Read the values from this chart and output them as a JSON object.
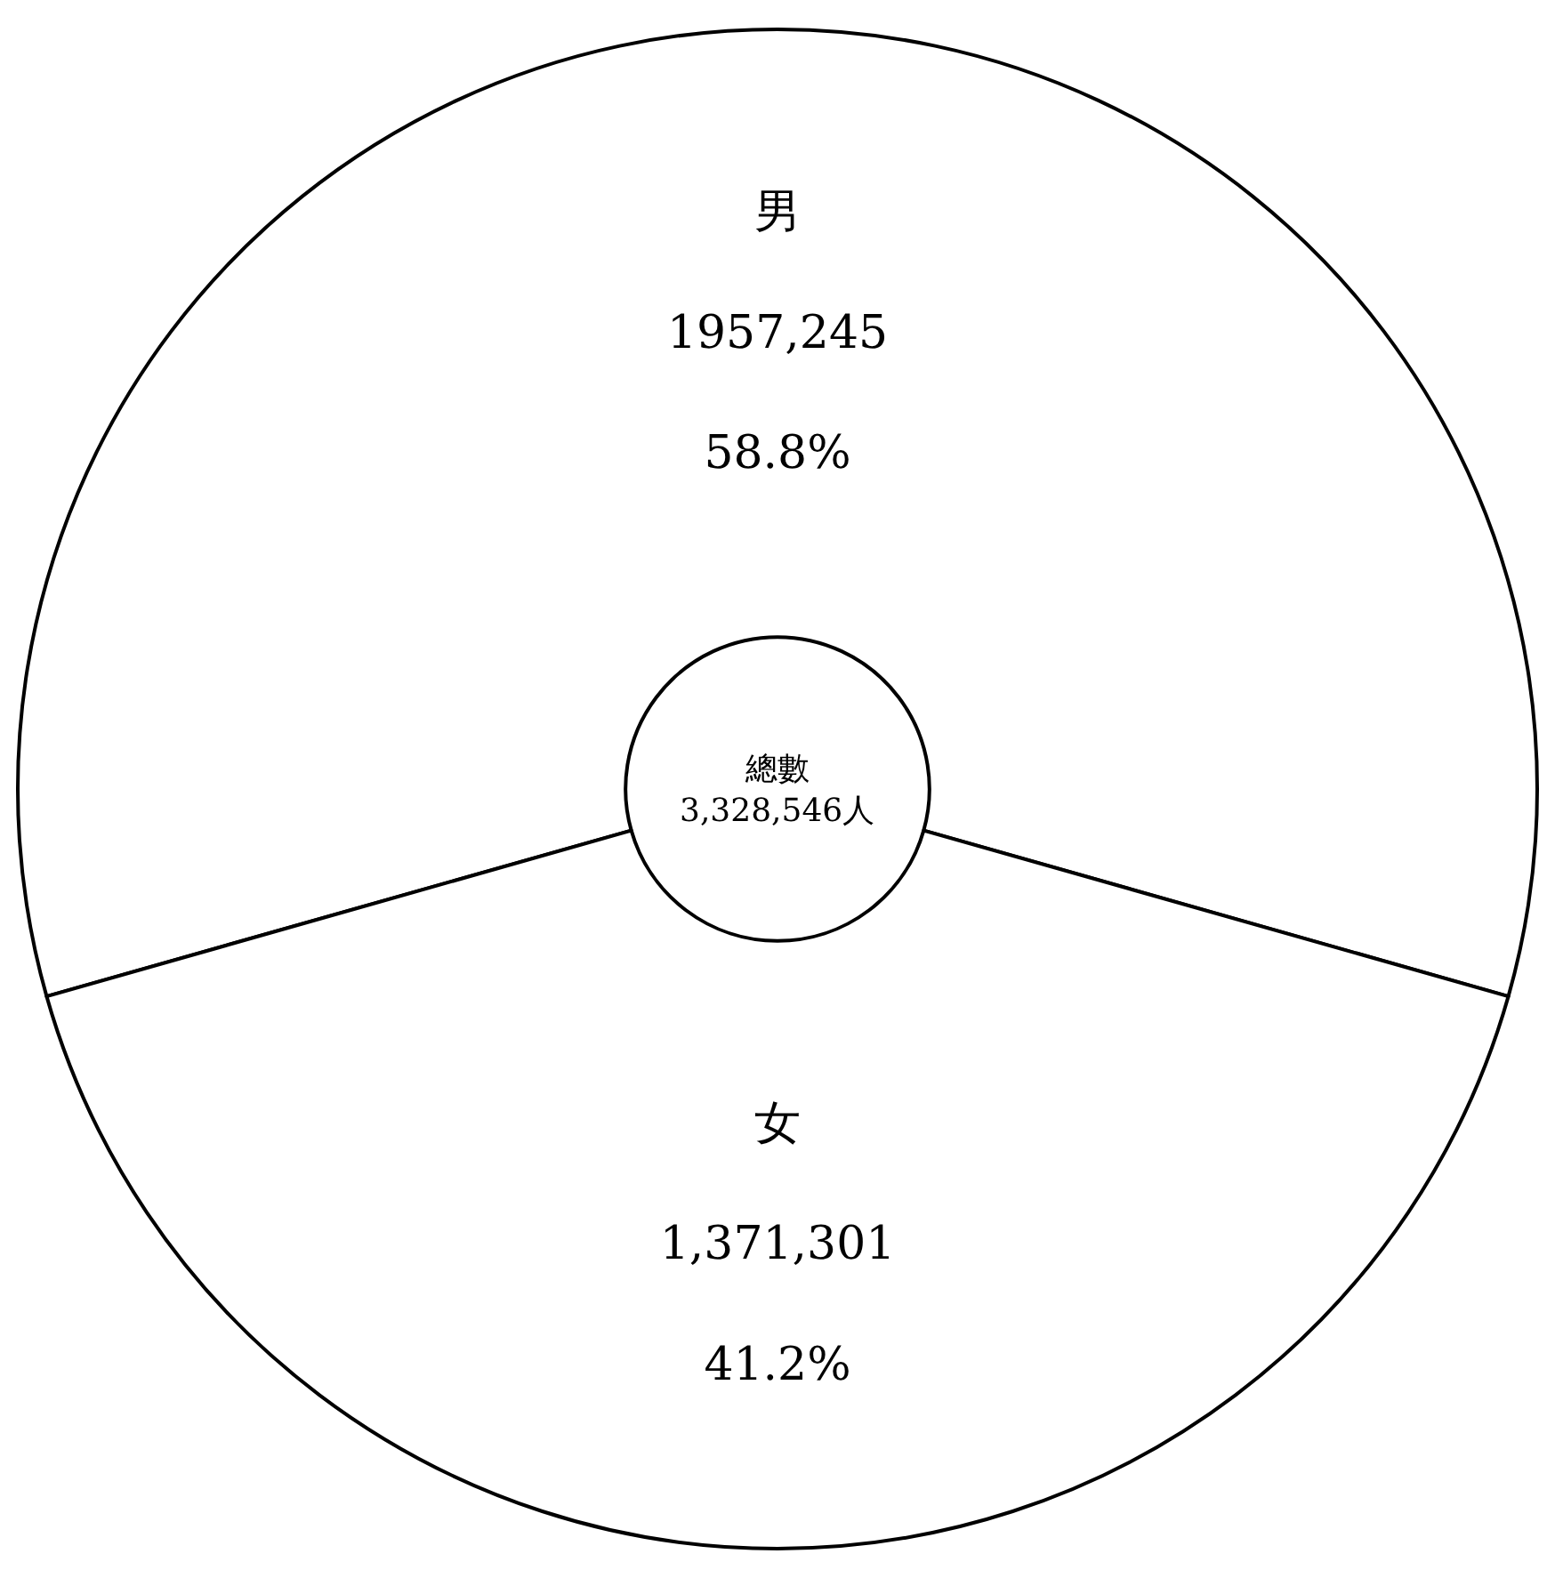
{
  "chart_data": {
    "type": "donut",
    "categories": [
      "男",
      "女"
    ],
    "values": [
      58.8,
      41.2
    ],
    "value_labels": [
      "1957,245\n58.8%",
      "1,371,301\n41.2%"
    ],
    "colors": [
      "#ffffff",
      "#ffffff"
    ],
    "annotations": [
      "總數\n3,328,546人"
    ],
    "legend": false
  }
}
